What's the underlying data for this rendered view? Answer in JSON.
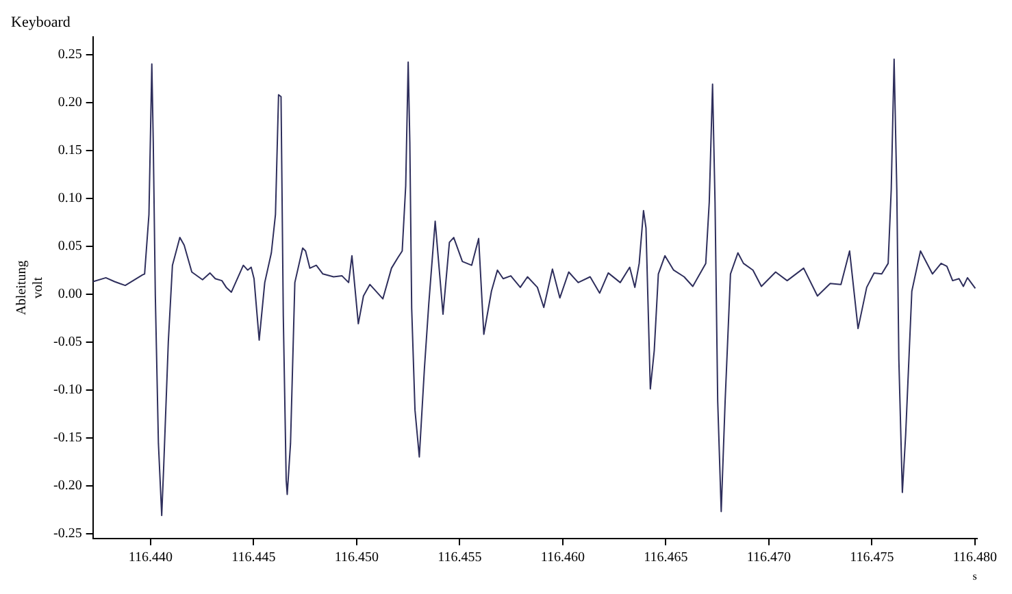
{
  "chart_data": {
    "type": "line",
    "title": "Keyboard",
    "xlabel": "s",
    "ylabel": "Ableitung\nvolt",
    "xlim": [
      116.4372,
      116.4801
    ],
    "ylim": [
      -0.255,
      0.268
    ],
    "xticks": [
      {
        "value": 116.44,
        "label": "116.440"
      },
      {
        "value": 116.445,
        "label": "116.445"
      },
      {
        "value": 116.45,
        "label": "116.450"
      },
      {
        "value": 116.455,
        "label": "116.455"
      },
      {
        "value": 116.46,
        "label": "116.460"
      },
      {
        "value": 116.465,
        "label": "116.465"
      },
      {
        "value": 116.47,
        "label": "116.470"
      },
      {
        "value": 116.475,
        "label": "116.475"
      },
      {
        "value": 116.48,
        "label": "116.480"
      }
    ],
    "yticks": [
      {
        "value": -0.25,
        "label": "-0.25"
      },
      {
        "value": -0.2,
        "label": "-0.20"
      },
      {
        "value": -0.15,
        "label": "-0.15"
      },
      {
        "value": -0.1,
        "label": "-0.10"
      },
      {
        "value": -0.05,
        "label": "-0.05"
      },
      {
        "value": 0,
        "label": "0.00"
      },
      {
        "value": 0.05,
        "label": "0.05"
      },
      {
        "value": 0.1,
        "label": "0.10"
      },
      {
        "value": 0.15,
        "label": "0.15"
      },
      {
        "value": 0.2,
        "label": "0.20"
      },
      {
        "value": 0.25,
        "label": "0.25"
      }
    ],
    "grid": false,
    "legend": false,
    "marker": "none",
    "line_style": "solid",
    "series": [
      {
        "color": "#2e2e5c",
        "x": [
          116.43721,
          116.43783,
          116.43825,
          116.4385,
          116.43877,
          116.43961,
          116.43971,
          116.43992,
          116.44006,
          116.44013,
          116.44023,
          116.44038,
          116.44054,
          116.44064,
          116.44086,
          116.44106,
          116.44142,
          116.44163,
          116.442,
          116.44252,
          116.44288,
          116.44314,
          116.44346,
          116.44367,
          116.44392,
          116.4445,
          116.44471,
          116.44488,
          116.44502,
          116.44527,
          116.44554,
          116.44586,
          116.44606,
          116.44621,
          116.44633,
          116.44644,
          116.44658,
          116.44663,
          116.44679,
          116.447,
          116.44738,
          116.44752,
          116.44773,
          116.44804,
          116.44836,
          116.44888,
          116.44929,
          116.44961,
          116.44977,
          116.45008,
          116.45033,
          116.45064,
          116.45127,
          116.45169,
          116.452,
          116.45221,
          116.45238,
          116.4525,
          116.45258,
          116.45267,
          116.45283,
          116.45304,
          116.45329,
          116.4535,
          116.45381,
          116.45419,
          116.4545,
          116.45471,
          116.45513,
          116.45558,
          116.45592,
          116.45617,
          116.45654,
          116.45683,
          116.45711,
          116.45748,
          116.45794,
          116.45829,
          116.45877,
          116.45908,
          116.4595,
          116.45986,
          116.46029,
          116.46075,
          116.46133,
          116.46179,
          116.46221,
          116.46279,
          116.46325,
          116.4635,
          116.46371,
          116.46392,
          116.46404,
          116.46425,
          116.46444,
          116.46464,
          116.46496,
          116.46538,
          116.46589,
          116.46631,
          116.46694,
          116.46711,
          116.46727,
          116.46739,
          116.46752,
          116.46769,
          116.46788,
          116.46814,
          116.4685,
          116.46877,
          116.46923,
          116.46964,
          116.47033,
          116.47089,
          116.47169,
          116.47236,
          116.47298,
          116.4735,
          116.47392,
          116.47433,
          116.47475,
          116.47511,
          116.47548,
          116.47579,
          116.47594,
          116.47608,
          116.47621,
          116.47631,
          116.47648,
          116.47664,
          116.47694,
          116.47736,
          116.47794,
          116.47836,
          116.47864,
          116.47892,
          116.47923,
          116.47944,
          116.47964,
          116.48002
        ],
        "values": [
          0.013,
          0.017,
          0.013,
          0.011,
          0.009,
          0.02,
          0.021,
          0.083,
          0.24,
          0.158,
          -0.002,
          -0.156,
          -0.231,
          -0.178,
          -0.05,
          0.03,
          0.059,
          0.051,
          0.023,
          0.015,
          0.022,
          0.016,
          0.014,
          0.007,
          0.002,
          0.03,
          0.025,
          0.028,
          0.016,
          -0.048,
          0.012,
          0.043,
          0.083,
          0.208,
          0.206,
          -0.023,
          -0.194,
          -0.209,
          -0.156,
          0.012,
          0.048,
          0.045,
          0.027,
          0.03,
          0.021,
          0.018,
          0.019,
          0.012,
          0.04,
          -0.031,
          -0.002,
          0.01,
          -0.005,
          0.027,
          0.038,
          0.045,
          0.113,
          0.242,
          0.158,
          -0.015,
          -0.121,
          -0.17,
          -0.077,
          -0.01,
          0.076,
          -0.021,
          0.054,
          0.059,
          0.034,
          0.03,
          0.058,
          -0.042,
          0.003,
          0.025,
          0.016,
          0.019,
          0.007,
          0.018,
          0.007,
          -0.014,
          0.026,
          -0.004,
          0.023,
          0.012,
          0.018,
          0.001,
          0.022,
          0.012,
          0.028,
          0.007,
          0.032,
          0.087,
          0.069,
          -0.099,
          -0.059,
          0.021,
          0.04,
          0.025,
          0.018,
          0.008,
          0.032,
          0.096,
          0.219,
          0.096,
          -0.112,
          -0.227,
          -0.112,
          0.021,
          0.043,
          0.032,
          0.025,
          0.008,
          0.023,
          0.014,
          0.027,
          -0.002,
          0.011,
          0.01,
          0.045,
          -0.036,
          0.007,
          0.022,
          0.021,
          0.032,
          0.109,
          0.245,
          0.109,
          -0.068,
          -0.207,
          -0.147,
          0.003,
          0.045,
          0.021,
          0.032,
          0.029,
          0.014,
          0.016,
          0.008,
          0.017,
          0.006
        ]
      }
    ]
  }
}
